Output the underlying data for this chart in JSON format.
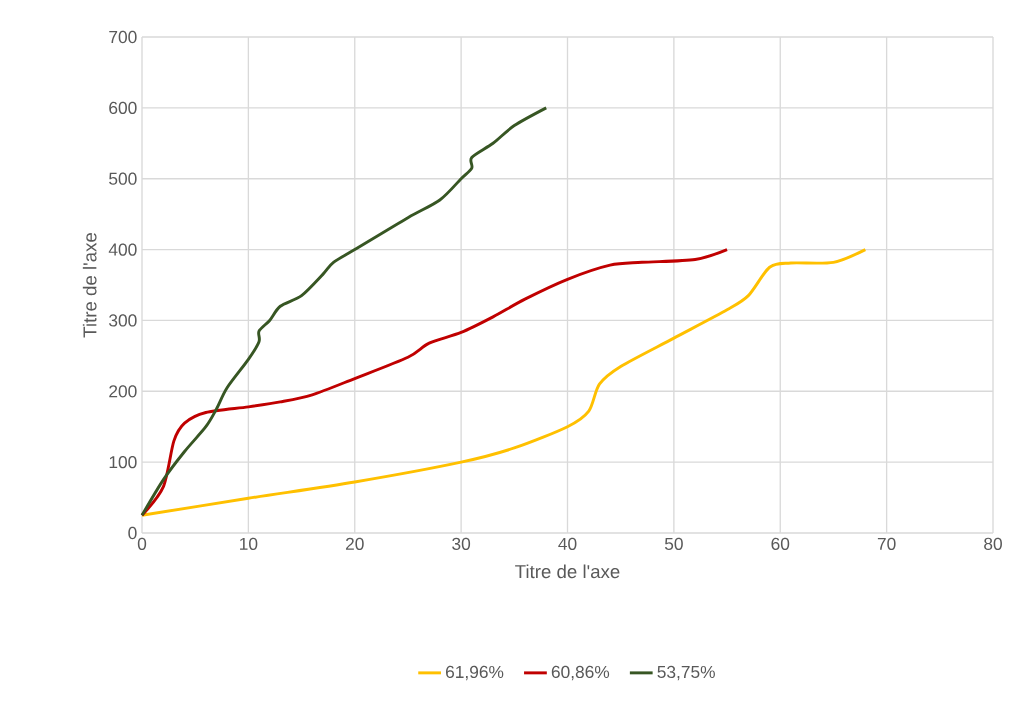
{
  "chart_data": {
    "type": "line",
    "xlabel": "Titre de l'axe",
    "ylabel": "Titre de l'axe",
    "xlim": [
      0,
      80
    ],
    "xticks": [
      0,
      10,
      20,
      30,
      40,
      50,
      60,
      70,
      80
    ],
    "ylim": [
      0,
      700
    ],
    "yticks": [
      0,
      100,
      200,
      300,
      400,
      500,
      600,
      700
    ],
    "grid": true,
    "legend": "bottom",
    "marker": "none",
    "line_style": "solid",
    "series": [
      {
        "name": "61,96%",
        "color": "#ffc000",
        "x": [
          0,
          10,
          20,
          30,
          35,
          40,
          42,
          43,
          45,
          50,
          55,
          57,
          59,
          61,
          65,
          68
        ],
        "values": [
          25,
          49,
          72,
          100,
          120,
          150,
          172,
          210,
          235,
          275,
          315,
          335,
          375,
          381,
          382,
          400
        ]
      },
      {
        "name": "60,86%",
        "color": "#c00000",
        "x": [
          0,
          2,
          3,
          4,
          6,
          10,
          13,
          16,
          20,
          25,
          27,
          30,
          33,
          36,
          40,
          44,
          47,
          52,
          55
        ],
        "values": [
          25,
          65,
          130,
          155,
          170,
          178,
          185,
          195,
          218,
          248,
          268,
          283,
          305,
          330,
          358,
          378,
          382,
          386,
          400
        ]
      },
      {
        "name": "53,75%",
        "color": "#375623",
        "x": [
          0,
          2,
          4,
          6,
          7,
          8,
          10,
          11,
          11,
          12,
          13,
          15,
          17,
          18,
          20,
          25,
          28,
          30,
          31,
          31,
          33,
          35,
          38
        ],
        "values": [
          25,
          75,
          115,
          150,
          175,
          205,
          245,
          270,
          285,
          300,
          320,
          335,
          365,
          382,
          400,
          445,
          470,
          500,
          515,
          530,
          550,
          575,
          600
        ]
      }
    ]
  }
}
